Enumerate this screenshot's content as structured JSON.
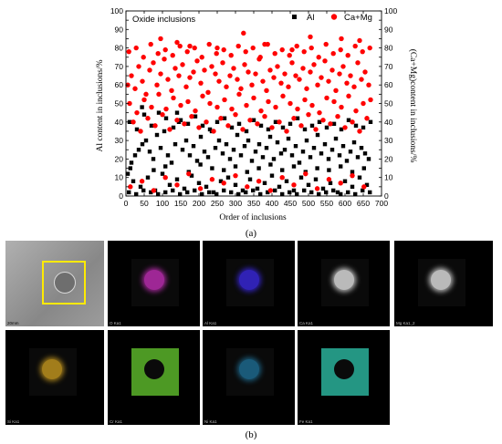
{
  "caption_a": "(a)",
  "caption_b": "(b)",
  "maps": {
    "row1": [
      {
        "label": "20mm",
        "kind": "sem",
        "color": "#9a9a9a"
      },
      {
        "label": "O Ka1",
        "kind": "map",
        "color": "#c42fb8"
      },
      {
        "label": "Al Ka1",
        "kind": "map",
        "color": "#3a28e0"
      },
      {
        "label": "Ca Ka1",
        "kind": "map",
        "color": "#e6e6e6"
      },
      {
        "label": "Mg Ka1_2",
        "kind": "map",
        "color": "#e6e6e6"
      }
    ],
    "row2": [
      {
        "label": "Si Ka1",
        "kind": "map",
        "color": "#c89a20"
      },
      {
        "label": "Cr Ka1",
        "kind": "map",
        "color": "#5ab42a"
      },
      {
        "label": "Ni Ka1",
        "kind": "map",
        "color": "#1f6f95"
      },
      {
        "label": "Fe Ka1",
        "kind": "map",
        "color": "#2ab09a"
      }
    ]
  },
  "chart_data": {
    "type": "scatter",
    "title": "Oxide inclusions",
    "xlabel": "Order of inclusions",
    "ylabel": "Al content in inclusions/%",
    "y2label": "(Ca+Mg)content in inclusions/%",
    "xlim": [
      0,
      700
    ],
    "ylim": [
      0,
      100
    ],
    "xticks": [
      0,
      50,
      100,
      150,
      200,
      250,
      300,
      350,
      400,
      450,
      500,
      550,
      600,
      650,
      700
    ],
    "yticks": [
      0,
      5,
      10,
      15,
      20,
      25,
      30,
      35,
      40,
      45,
      50,
      55,
      60,
      65,
      70,
      75,
      80,
      85,
      90,
      95,
      100
    ],
    "legend_position": "top-right",
    "series": [
      {
        "name": "Al",
        "marker": "square",
        "color": "#000000",
        "x": [
          5,
          15,
          25,
          35,
          45,
          55,
          65,
          75,
          85,
          95,
          105,
          115,
          125,
          135,
          145,
          155,
          165,
          175,
          185,
          195,
          205,
          215,
          225,
          235,
          245,
          255,
          265,
          275,
          285,
          295,
          305,
          315,
          325,
          335,
          345,
          355,
          365,
          375,
          385,
          395,
          405,
          415,
          425,
          435,
          445,
          455,
          465,
          475,
          485,
          495,
          505,
          515,
          525,
          535,
          545,
          555,
          565,
          575,
          585,
          595,
          605,
          615,
          625,
          635,
          645,
          655,
          665,
          10,
          30,
          50,
          70,
          90,
          110,
          130,
          150,
          170,
          190,
          210,
          230,
          250,
          270,
          290,
          310,
          330,
          350,
          370,
          390,
          410,
          430,
          450,
          470,
          490,
          510,
          530,
          550,
          570,
          590,
          610,
          630,
          650,
          670,
          20,
          40,
          60,
          80,
          100,
          120,
          140,
          160,
          180,
          200,
          220,
          240,
          260,
          280,
          300,
          320,
          340,
          360,
          380,
          400,
          420,
          440,
          460,
          480,
          500,
          520,
          540,
          560,
          580,
          600,
          620,
          640,
          660,
          12,
          44,
          76,
          108,
          140,
          172,
          204,
          236,
          268,
          300,
          332,
          364,
          396,
          428,
          460,
          492,
          524,
          556,
          588,
          620,
          652,
          8,
          28,
          48,
          68,
          88,
          108,
          128,
          148,
          168,
          188,
          208,
          228,
          248,
          268,
          288,
          308,
          328,
          348,
          368,
          388,
          408,
          428,
          448,
          468,
          488,
          508,
          528,
          548,
          568,
          588,
          608,
          628,
          648,
          668
        ],
        "y": [
          12,
          18,
          22,
          25,
          28,
          30,
          24,
          20,
          33,
          26,
          35,
          22,
          18,
          28,
          40,
          25,
          30,
          22,
          27,
          19,
          32,
          24,
          21,
          35,
          26,
          30,
          23,
          28,
          20,
          25,
          33,
          22,
          27,
          30,
          19,
          24,
          28,
          21,
          26,
          32,
          20,
          29,
          23,
          25,
          31,
          22,
          27,
          18,
          24,
          30,
          21,
          26,
          33,
          23,
          28,
          20,
          25,
          31,
          22,
          27,
          19,
          24,
          29,
          21,
          26,
          23,
          20,
          40,
          36,
          44,
          38,
          45,
          42,
          37,
          41,
          39,
          43,
          38,
          36,
          40,
          42,
          37,
          39,
          35,
          41,
          38,
          36,
          40,
          37,
          39,
          42,
          36,
          38,
          40,
          37,
          39,
          36,
          41,
          38,
          37,
          40,
          8,
          5,
          10,
          3,
          12,
          6,
          9,
          4,
          11,
          7,
          5,
          2,
          8,
          10,
          6,
          3,
          9,
          4,
          7,
          11,
          5,
          8,
          3,
          10,
          6,
          9,
          4,
          7,
          2,
          8,
          5,
          10,
          6,
          15,
          48,
          14,
          16,
          45,
          13,
          17,
          15,
          14,
          16,
          13,
          15,
          17,
          14,
          16,
          13,
          15,
          14,
          16,
          13,
          15,
          2,
          1,
          3,
          2,
          1,
          2,
          3,
          1,
          2,
          3,
          1,
          2,
          1,
          3,
          2,
          1,
          2,
          3,
          1,
          2,
          3,
          1,
          2,
          1,
          3,
          2,
          1,
          2,
          3,
          1,
          2,
          1,
          3,
          2
        ]
      },
      {
        "name": "Ca+Mg",
        "marker": "circle",
        "color": "#ff0000",
        "x": [
          5,
          15,
          25,
          35,
          45,
          55,
          65,
          75,
          85,
          95,
          105,
          115,
          125,
          135,
          145,
          155,
          165,
          175,
          185,
          195,
          205,
          215,
          225,
          235,
          245,
          255,
          265,
          275,
          285,
          295,
          305,
          315,
          325,
          335,
          345,
          355,
          365,
          375,
          385,
          395,
          405,
          415,
          425,
          435,
          445,
          455,
          465,
          475,
          485,
          495,
          505,
          515,
          525,
          535,
          545,
          555,
          565,
          575,
          585,
          595,
          605,
          615,
          625,
          635,
          645,
          655,
          665,
          10,
          30,
          50,
          70,
          90,
          110,
          130,
          150,
          170,
          190,
          210,
          230,
          250,
          270,
          290,
          310,
          330,
          350,
          370,
          390,
          410,
          430,
          450,
          470,
          490,
          510,
          530,
          550,
          570,
          590,
          610,
          630,
          650,
          670,
          20,
          40,
          60,
          80,
          100,
          120,
          140,
          160,
          180,
          200,
          220,
          240,
          260,
          280,
          300,
          320,
          340,
          360,
          380,
          400,
          420,
          440,
          460,
          480,
          500,
          520,
          540,
          560,
          580,
          600,
          620,
          640,
          660,
          12,
          44,
          76,
          108,
          140,
          172,
          204,
          236,
          268,
          300,
          332,
          364,
          396,
          428,
          460,
          492,
          524,
          556,
          588,
          620,
          652,
          8,
          28,
          48,
          68,
          88,
          108,
          128,
          148,
          168,
          188,
          208,
          228,
          248,
          268,
          288,
          308,
          328,
          348,
          368,
          388,
          408,
          428,
          448,
          468,
          488,
          508,
          528,
          548,
          568,
          588,
          608,
          628,
          648,
          668,
          322,
          95,
          140,
          250,
          505,
          590,
          640,
          380,
          175,
          455
        ],
        "y": [
          60,
          65,
          58,
          70,
          62,
          55,
          68,
          72,
          60,
          66,
          74,
          63,
          57,
          69,
          65,
          71,
          59,
          64,
          67,
          73,
          61,
          68,
          56,
          70,
          66,
          62,
          72,
          59,
          65,
          69,
          63,
          58,
          71,
          67,
          60,
          66,
          74,
          62,
          57,
          68,
          64,
          70,
          61,
          66,
          59,
          72,
          65,
          63,
          69,
          58,
          67,
          71,
          60,
          64,
          73,
          62,
          68,
          57,
          66,
          70,
          61,
          65,
          59,
          72,
          63,
          67,
          60,
          50,
          45,
          52,
          48,
          55,
          47,
          53,
          49,
          51,
          46,
          54,
          50,
          48,
          52,
          47,
          55,
          49,
          53,
          46,
          51,
          48,
          54,
          50,
          47,
          52,
          49,
          45,
          53,
          51,
          48,
          54,
          46,
          50,
          52,
          40,
          35,
          42,
          38,
          44,
          36,
          41,
          39,
          43,
          37,
          40,
          35,
          42,
          38,
          44,
          36,
          41,
          39,
          43,
          37,
          40,
          35,
          42,
          38,
          44,
          36,
          41,
          39,
          43,
          37,
          40,
          35,
          42,
          5,
          8,
          3,
          10,
          6,
          12,
          4,
          9,
          7,
          11,
          5,
          8,
          3,
          10,
          6,
          12,
          4,
          9,
          7,
          11,
          5,
          78,
          80,
          75,
          82,
          77,
          79,
          76,
          81,
          78,
          80,
          75,
          82,
          77,
          79,
          76,
          81,
          78,
          80,
          75,
          82,
          77,
          79,
          76,
          81,
          78,
          80,
          75,
          82,
          77,
          79,
          76,
          81,
          78,
          80,
          88,
          85,
          83,
          80,
          86,
          85,
          84,
          82,
          81,
          79
        ]
      }
    ]
  }
}
